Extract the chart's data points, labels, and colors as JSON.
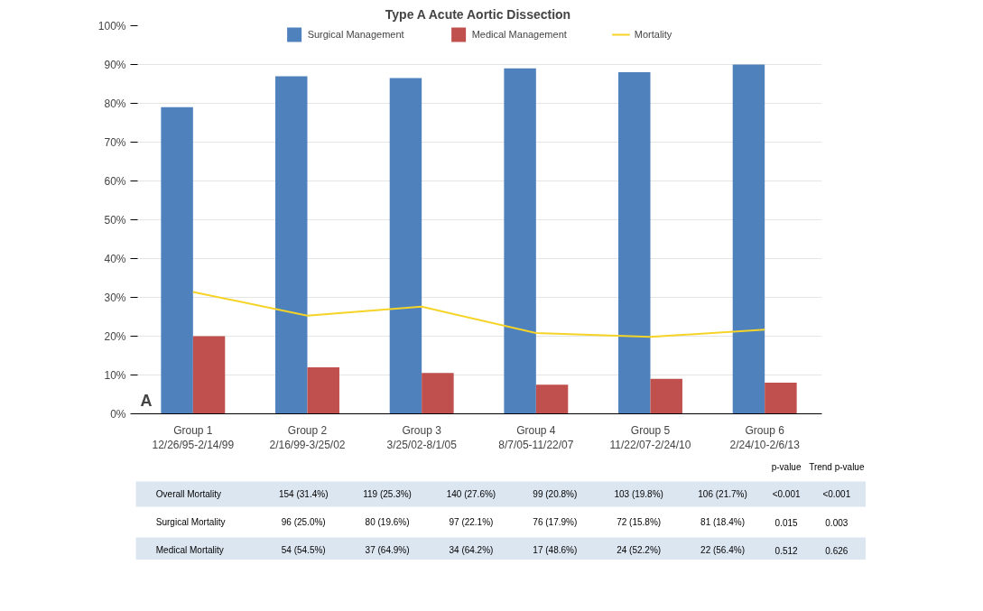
{
  "chart_data": {
    "type": "bar",
    "title": "Type A Acute Aortic Dissection",
    "categories": [
      "Group 1\n12/26/95-2/14/99",
      "Group 2\n2/16/99-3/25/02",
      "Group 3\n3/25/02-8/1/05",
      "Group 4\n8/7/05-11/22/07",
      "Group 5\n11/22/07-2/24/10",
      "Group 6\n2/24/10-2/6/13"
    ],
    "series": [
      {
        "name": "Surgical Management",
        "color": "#4f81bd",
        "values": [
          79,
          87,
          86.5,
          89,
          88,
          90
        ]
      },
      {
        "name": "Medical Management",
        "color": "#c0504d",
        "values": [
          20,
          12,
          10.5,
          7.5,
          9,
          8
        ]
      },
      {
        "name": "Mortality",
        "type": "line",
        "color": "#f5d327",
        "values": [
          31.4,
          25.3,
          27.6,
          20.8,
          19.8,
          21.7
        ]
      }
    ],
    "ylim": [
      0,
      100
    ],
    "yticks": [
      {
        "value": 0,
        "label": "0%"
      },
      {
        "value": 10,
        "label": "10%"
      },
      {
        "value": 20,
        "label": "20%"
      },
      {
        "value": 30,
        "label": "30%"
      },
      {
        "value": 40,
        "label": "40%"
      },
      {
        "value": 50,
        "label": "50%"
      },
      {
        "value": 60,
        "label": "60%"
      },
      {
        "value": 70,
        "label": "70%"
      },
      {
        "value": 80,
        "label": "80%"
      },
      {
        "value": 90,
        "label": "90%"
      },
      {
        "value": 100,
        "label": "100%"
      }
    ],
    "grid": "y",
    "legend": "top",
    "annotations": [
      "A",
      "p-value",
      "Trend p-value",
      "Overall Mortality",
      "154 (31.4%)",
      "119 (25.3%)",
      "140 (27.6%)",
      "99 (20.8%)",
      "103 (19.8%)",
      "106 (21.7%)",
      "<0.001",
      "<0.001",
      "Surgical Mortality",
      "96 (25.0%)",
      "80 (19.6%)",
      "97 (22.1%)",
      "76 (17.9%)",
      "72 (15.8%)",
      "81 (18.4%)",
      "0.015",
      "0.003",
      "Medical Mortality",
      "54 (54.5%)",
      "37 (64.9%)",
      "34 (64.2%)",
      "17 (48.6%)",
      "24 (52.2%)",
      "22 (56.4%)",
      "0.512",
      "0.626"
    ]
  }
}
